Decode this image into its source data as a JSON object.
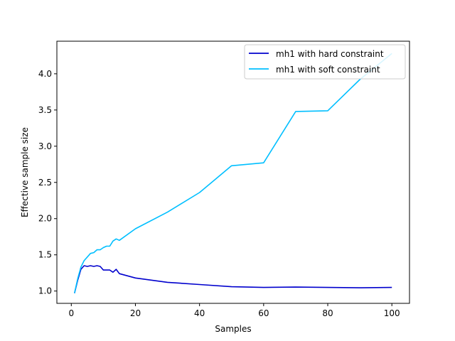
{
  "chart_data": {
    "type": "line",
    "title": "",
    "xlabel": "Samples",
    "ylabel": "Effective sample size",
    "xlim": [
      -4.5,
      105.5
    ],
    "ylim": [
      0.83,
      4.45
    ],
    "grid": false,
    "legend_position": "top-right",
    "xticks": [
      0,
      20,
      40,
      60,
      80,
      100
    ],
    "yticks": [
      1.0,
      1.5,
      2.0,
      2.5,
      3.0,
      3.5,
      4.0
    ],
    "xtick_labels": [
      "0",
      "20",
      "40",
      "60",
      "80",
      "100"
    ],
    "ytick_labels": [
      "1.0",
      "1.5",
      "2.0",
      "2.5",
      "3.0",
      "3.5",
      "4.0"
    ],
    "series": [
      {
        "name": "mh1 with hard constraint",
        "color": "#0000cd",
        "x": [
          1,
          2,
          3,
          4,
          5,
          6,
          7,
          8,
          9,
          10,
          11,
          12,
          13,
          14,
          15,
          20,
          30,
          40,
          50,
          60,
          70,
          80,
          90,
          100
        ],
        "y": [
          0.97,
          1.15,
          1.3,
          1.35,
          1.34,
          1.35,
          1.34,
          1.35,
          1.34,
          1.29,
          1.29,
          1.29,
          1.26,
          1.3,
          1.24,
          1.18,
          1.12,
          1.09,
          1.06,
          1.05,
          1.055,
          1.05,
          1.045,
          1.05
        ]
      },
      {
        "name": "mh1 with soft constraint",
        "color": "#00bfff",
        "x": [
          1,
          2,
          3,
          4,
          5,
          6,
          7,
          8,
          9,
          10,
          11,
          12,
          13,
          14,
          15,
          20,
          30,
          40,
          50,
          60,
          70,
          80,
          90,
          100
        ],
        "y": [
          0.97,
          1.17,
          1.33,
          1.42,
          1.47,
          1.52,
          1.53,
          1.57,
          1.57,
          1.6,
          1.62,
          1.62,
          1.69,
          1.72,
          1.7,
          1.86,
          2.09,
          2.36,
          2.73,
          2.77,
          3.48,
          3.49,
          3.92,
          4.28
        ]
      }
    ]
  }
}
